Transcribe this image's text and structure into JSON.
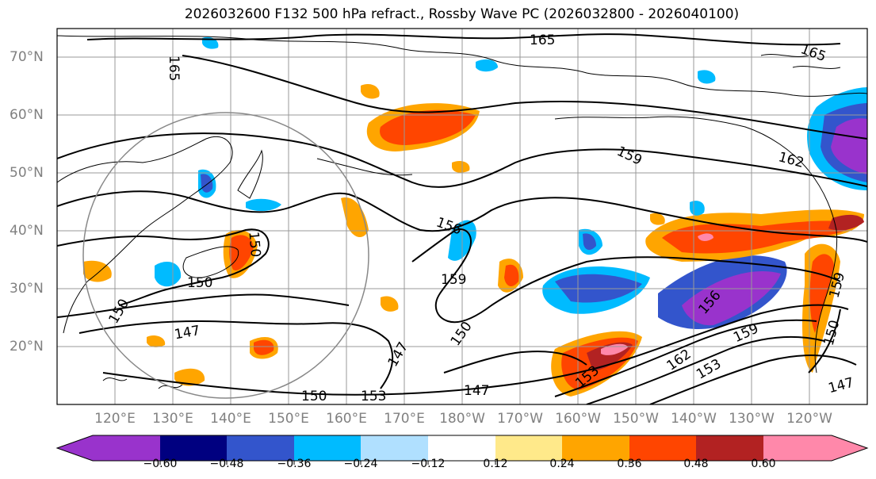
{
  "title": "2026032600 F132 500 hPa refract., Rossby Wave PC (2026032800 - 2026040100)",
  "lat_labels": [
    "70°N",
    "60°N",
    "50°N",
    "40°N",
    "30°N",
    "20°N"
  ],
  "lon_labels": [
    "120°E",
    "130°E",
    "140°E",
    "150°E",
    "160°E",
    "170°E",
    "180°W",
    "170°W",
    "160°W",
    "150°W",
    "140°W",
    "130°W",
    "120°W"
  ],
  "colorbar": {
    "colors": [
      "#9933cc",
      "#000080",
      "#3355cc",
      "#00bbff",
      "#b0e0ff",
      "#ffffff",
      "#ffe98a",
      "#ffa500",
      "#ff4500",
      "#b22222",
      "#ff88aa"
    ],
    "tick_labels": [
      "−0.60",
      "−0.48",
      "−0.36",
      "−0.24",
      "−0.12",
      "0.12",
      "0.24",
      "0.36",
      "0.48",
      "0.60"
    ]
  },
  "contour_labels": [
    "165",
    "165",
    "165",
    "159",
    "162",
    "156",
    "159",
    "150",
    "147",
    "147",
    "150",
    "153",
    "147",
    "153",
    "162",
    "159",
    "150",
    "147",
    "156",
    "150",
    "159",
    "153",
    "150"
  ]
}
